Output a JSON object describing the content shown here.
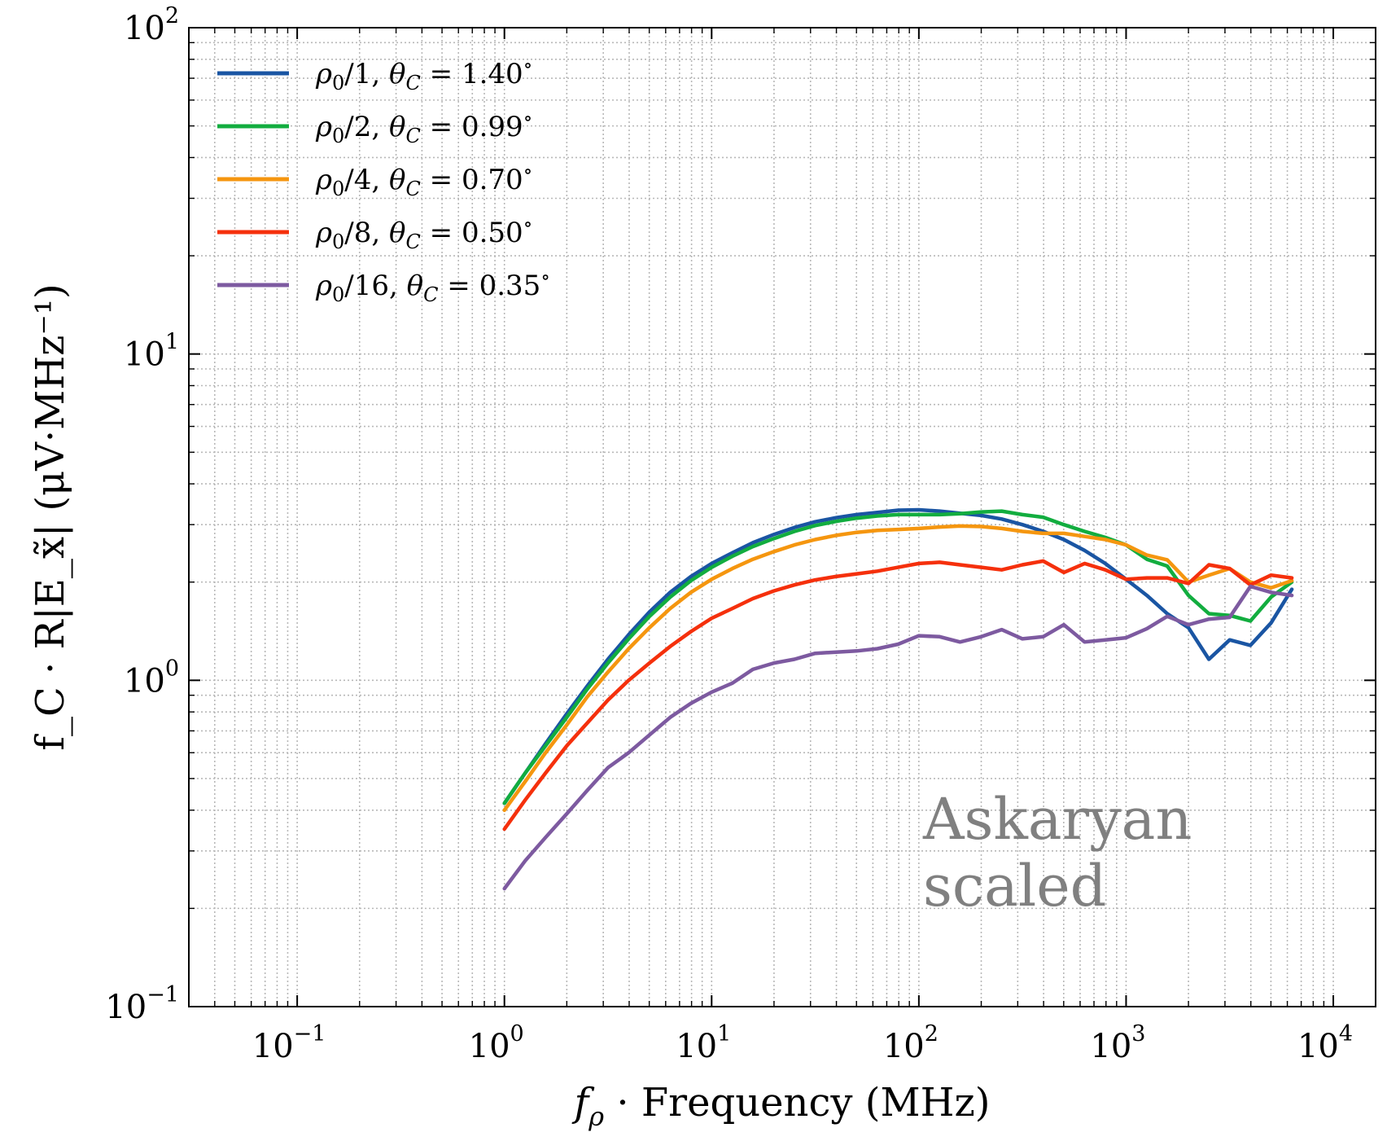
{
  "chart_data": {
    "type": "line",
    "x_scale": "log",
    "y_scale": "log",
    "xlim": [
      0.03,
      16000
    ],
    "ylim": [
      0.1,
      100
    ],
    "xlabel_prefix": "f",
    "xlabel_sub": "ρ",
    "xlabel_text": " · Frequency (MHz)",
    "ylabel_text": "f_C · R|E_x̃| (μV·MHz⁻¹)",
    "grid": true,
    "legend_position": "upper-left",
    "x_ticks": [
      {
        "value": 0.1,
        "base": "10",
        "exp": "−1"
      },
      {
        "value": 1,
        "base": "10",
        "exp": "0"
      },
      {
        "value": 10,
        "base": "10",
        "exp": "1"
      },
      {
        "value": 100,
        "base": "10",
        "exp": "2"
      },
      {
        "value": 1000,
        "base": "10",
        "exp": "3"
      },
      {
        "value": 10000,
        "base": "10",
        "exp": "4"
      }
    ],
    "y_ticks": [
      {
        "value": 0.1,
        "base": "10",
        "exp": "−1"
      },
      {
        "value": 1,
        "base": "10",
        "exp": "0"
      },
      {
        "value": 10,
        "base": "10",
        "exp": "1"
      },
      {
        "value": 100,
        "base": "10",
        "exp": "2"
      }
    ],
    "annotation": [
      "Askaryan",
      "scaled"
    ],
    "series": [
      {
        "name": "ρ0/1, θC = 1.40°",
        "rho_div": "1",
        "theta": "1.40",
        "color": "#1a55a3",
        "x": [
          1,
          1.26,
          1.58,
          2,
          2.51,
          3.16,
          3.98,
          5.01,
          6.31,
          7.94,
          10,
          12.6,
          15.8,
          20,
          25.1,
          31.6,
          39.8,
          50.1,
          63.1,
          79.4,
          100,
          126,
          158,
          200,
          251,
          316,
          398,
          501,
          631,
          794,
          1000,
          1260,
          1580,
          2000,
          2510,
          3160,
          3980,
          5010,
          6310
        ],
        "y": [
          0.42,
          0.52,
          0.64,
          0.79,
          0.96,
          1.16,
          1.38,
          1.62,
          1.86,
          2.08,
          2.28,
          2.46,
          2.64,
          2.8,
          2.94,
          3.06,
          3.15,
          3.22,
          3.27,
          3.32,
          3.33,
          3.3,
          3.25,
          3.2,
          3.12,
          3.0,
          2.86,
          2.7,
          2.5,
          2.28,
          2.04,
          1.82,
          1.6,
          1.45,
          1.16,
          1.33,
          1.28,
          1.5,
          1.9
        ]
      },
      {
        "name": "ρ0/2, θC = 0.99°",
        "rho_div": "2",
        "theta": "0.99",
        "color": "#12ad3f",
        "x": [
          1,
          1.26,
          1.58,
          2,
          2.51,
          3.16,
          3.98,
          5.01,
          6.31,
          7.94,
          10,
          12.6,
          15.8,
          20,
          25.1,
          31.6,
          39.8,
          50.1,
          63.1,
          79.4,
          100,
          126,
          158,
          200,
          251,
          316,
          398,
          501,
          631,
          794,
          1000,
          1260,
          1580,
          2000,
          2510,
          3160,
          3980,
          5010,
          6310
        ],
        "y": [
          0.42,
          0.52,
          0.63,
          0.77,
          0.94,
          1.13,
          1.34,
          1.57,
          1.8,
          2.02,
          2.22,
          2.4,
          2.57,
          2.72,
          2.86,
          2.98,
          3.07,
          3.14,
          3.19,
          3.22,
          3.22,
          3.22,
          3.24,
          3.28,
          3.3,
          3.22,
          3.16,
          3.0,
          2.86,
          2.74,
          2.6,
          2.35,
          2.24,
          1.82,
          1.6,
          1.58,
          1.52,
          1.8,
          2.0
        ]
      },
      {
        "name": "ρ0/4, θC = 0.70°",
        "rho_div": "4",
        "theta": "0.70",
        "color": "#f5960f",
        "x": [
          1,
          1.26,
          1.58,
          2,
          2.51,
          3.16,
          3.98,
          5.01,
          6.31,
          7.94,
          10,
          12.6,
          15.8,
          20,
          25.1,
          31.6,
          39.8,
          50.1,
          63.1,
          79.4,
          100,
          126,
          158,
          200,
          251,
          316,
          398,
          501,
          631,
          794,
          1000,
          1260,
          1580,
          2000,
          2510,
          3160,
          3980,
          5010,
          6310
        ],
        "y": [
          0.4,
          0.49,
          0.6,
          0.73,
          0.89,
          1.06,
          1.25,
          1.45,
          1.66,
          1.86,
          2.04,
          2.2,
          2.35,
          2.48,
          2.6,
          2.7,
          2.78,
          2.84,
          2.88,
          2.9,
          2.92,
          2.95,
          2.97,
          2.96,
          2.92,
          2.86,
          2.82,
          2.82,
          2.76,
          2.7,
          2.6,
          2.42,
          2.34,
          2.0,
          2.1,
          2.2,
          2.0,
          1.92,
          2.02
        ]
      },
      {
        "name": "ρ0/8, θC = 0.50°",
        "rho_div": "8",
        "theta": "0.50",
        "color": "#f5300c",
        "x": [
          1,
          1.26,
          1.58,
          2,
          2.51,
          3.16,
          3.98,
          5.01,
          6.31,
          7.94,
          10,
          12.6,
          15.8,
          20,
          25.1,
          31.6,
          39.8,
          50.1,
          63.1,
          79.4,
          100,
          126,
          158,
          200,
          251,
          316,
          398,
          501,
          631,
          794,
          1000,
          1260,
          1580,
          2000,
          2510,
          3160,
          3980,
          5010,
          6310
        ],
        "y": [
          0.35,
          0.43,
          0.52,
          0.63,
          0.74,
          0.87,
          1.0,
          1.13,
          1.27,
          1.41,
          1.55,
          1.66,
          1.78,
          1.88,
          1.96,
          2.03,
          2.08,
          2.12,
          2.16,
          2.22,
          2.28,
          2.3,
          2.26,
          2.22,
          2.18,
          2.26,
          2.32,
          2.14,
          2.28,
          2.18,
          2.04,
          2.06,
          2.06,
          1.98,
          2.26,
          2.2,
          1.96,
          2.1,
          2.06
        ]
      },
      {
        "name": "ρ0/16, θC = 0.35°",
        "rho_div": "16",
        "theta": "0.35",
        "color": "#7d5aa0",
        "x": [
          1,
          1.26,
          1.58,
          2,
          2.51,
          3.16,
          3.98,
          5.01,
          6.31,
          7.94,
          10,
          12.6,
          15.8,
          20,
          25.1,
          31.6,
          39.8,
          50.1,
          63.1,
          79.4,
          100,
          126,
          158,
          200,
          251,
          316,
          398,
          501,
          631,
          794,
          1000,
          1260,
          1580,
          2000,
          2510,
          3160,
          3980,
          5010,
          6310
        ],
        "y": [
          0.23,
          0.28,
          0.33,
          0.39,
          0.46,
          0.54,
          0.6,
          0.68,
          0.77,
          0.85,
          0.92,
          0.98,
          1.08,
          1.13,
          1.16,
          1.21,
          1.22,
          1.23,
          1.25,
          1.29,
          1.37,
          1.36,
          1.31,
          1.36,
          1.43,
          1.34,
          1.36,
          1.48,
          1.31,
          1.33,
          1.35,
          1.44,
          1.57,
          1.48,
          1.54,
          1.56,
          1.94,
          1.86,
          1.82
        ]
      }
    ]
  }
}
